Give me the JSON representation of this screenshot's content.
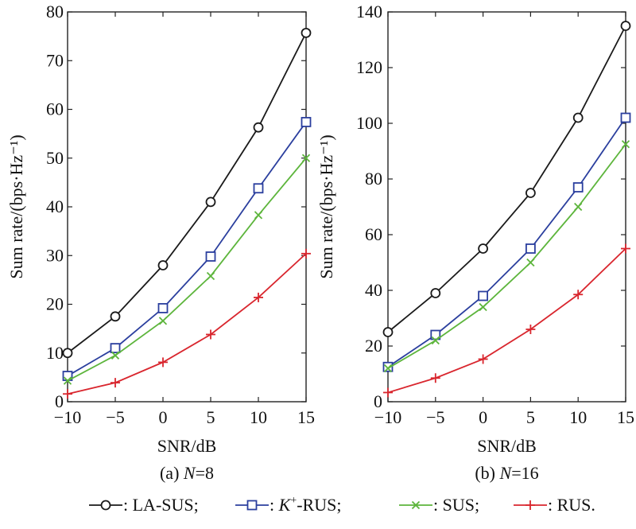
{
  "chart_data": [
    {
      "type": "line",
      "caption_prefix": "(a) ",
      "caption_var": "N",
      "caption_suffix": "=8",
      "xlabel": "SNR/dB",
      "ylabel": "Sum rate/(bps·Hz⁻¹)",
      "x": [
        -10,
        -5,
        0,
        5,
        10,
        15
      ],
      "xlim": [
        -10,
        15
      ],
      "ylim": [
        0,
        80
      ],
      "xticks": [
        -10,
        -5,
        0,
        5,
        10,
        15
      ],
      "xtick_labels": [
        "−10",
        "−5",
        "0",
        "5",
        "10",
        "15"
      ],
      "yticks": [
        0,
        10,
        20,
        30,
        40,
        50,
        60,
        70,
        80
      ],
      "ytick_labels": [
        "0",
        "10",
        "20",
        "30",
        "40",
        "50",
        "60",
        "70",
        "80"
      ],
      "series": [
        {
          "key": "la_sus",
          "values": [
            10,
            17.5,
            28,
            41,
            56.3,
            75.7
          ]
        },
        {
          "key": "k_rus",
          "values": [
            5.3,
            11,
            19.2,
            29.8,
            43.8,
            57.4
          ]
        },
        {
          "key": "sus",
          "values": [
            4.3,
            9.5,
            16.6,
            25.8,
            38.3,
            50
          ]
        },
        {
          "key": "rus",
          "values": [
            1.6,
            3.9,
            8.1,
            13.8,
            21.4,
            30.4
          ]
        }
      ]
    },
    {
      "type": "line",
      "caption_prefix": "(b) ",
      "caption_var": "N",
      "caption_suffix": "=16",
      "xlabel": "SNR/dB",
      "ylabel": "Sum rate/(bps·Hz⁻¹)",
      "x": [
        -10,
        -5,
        0,
        5,
        10,
        15
      ],
      "xlim": [
        -10,
        15
      ],
      "ylim": [
        0,
        140
      ],
      "xticks": [
        -10,
        -5,
        0,
        5,
        10,
        15
      ],
      "xtick_labels": [
        "−10",
        "−5",
        "0",
        "5",
        "10",
        "15"
      ],
      "yticks": [
        0,
        20,
        40,
        60,
        80,
        100,
        120,
        140
      ],
      "ytick_labels": [
        "0",
        "20",
        "40",
        "60",
        "80",
        "100",
        "120",
        "140"
      ],
      "series": [
        {
          "key": "la_sus",
          "values": [
            25,
            39,
            55,
            75,
            102,
            135
          ]
        },
        {
          "key": "k_rus",
          "values": [
            12.5,
            24,
            38,
            55,
            77,
            102
          ]
        },
        {
          "key": "sus",
          "values": [
            12,
            22,
            34,
            50,
            70,
            92.5
          ]
        },
        {
          "key": "rus",
          "values": [
            3.3,
            8.5,
            15.3,
            26,
            38.5,
            55
          ]
        }
      ]
    }
  ],
  "series_style": {
    "la_sus": {
      "color": "#1a1a1a",
      "marker": "circle"
    },
    "k_rus": {
      "color": "#2b3f9e",
      "marker": "square"
    },
    "sus": {
      "color": "#5db53c",
      "marker": "x"
    },
    "rus": {
      "color": "#d9262e",
      "marker": "plus"
    }
  },
  "legend": {
    "placement": "bottom",
    "items": [
      {
        "key": "la_sus",
        "label": ": LA-SUS;"
      },
      {
        "key": "k_rus",
        "label_pre": ": ",
        "label_italic": "K",
        "label_sup": "+",
        "label_post": "-RUS;"
      },
      {
        "key": "sus",
        "label": ": SUS;"
      },
      {
        "key": "rus",
        "label": ": RUS."
      }
    ]
  }
}
